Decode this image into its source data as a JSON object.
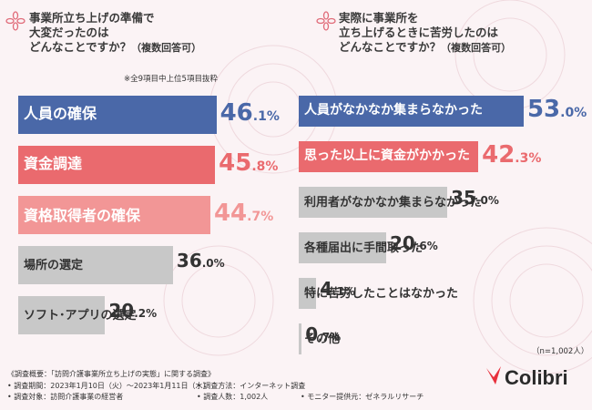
{
  "left": {
    "title_lines": [
      "事業所立ち上げの準備で",
      "大変だったのは"
    ],
    "title_last": "どんなことですか？",
    "title_sub": "（複数回答可）",
    "note": "※全9項目中上位5項目抜粋",
    "accent_color": "#c2404a"
  },
  "right": {
    "title_lines": [
      "実際に事業所を",
      "立ち上げるときに苦労したのは"
    ],
    "title_last": "どんなことですか？",
    "title_sub": "（複数回答可）",
    "sample": "（n=1,002人）"
  },
  "chart_data": [
    {
      "type": "bar",
      "orientation": "horizontal",
      "title": "事業所立ち上げの準備で大変だったのはどんなことですか？（複数回答可）",
      "categories": [
        "人員の確保",
        "資金調達",
        "資格取得者の確保",
        "場所の選定",
        "ソフト･アプリの選定"
      ],
      "values": [
        46.1,
        45.8,
        44.7,
        36.0,
        20.2
      ],
      "labels_int": [
        "46",
        "45",
        "44",
        "36",
        "20"
      ],
      "labels_dec": [
        ".1%",
        ".8%",
        ".7%",
        ".0%",
        ".2%"
      ],
      "colors": [
        "#4a68a8",
        "#ea6a6e",
        "#f29696",
        "#c8c8c8",
        "#c8c8c8"
      ],
      "label_colors": [
        "#ffffff",
        "#ffffff",
        "#ffffff",
        "#333333",
        "#333333"
      ],
      "pct_colors": [
        "#4a68a8",
        "#ea6a6e",
        "#f29696",
        "#333333",
        "#333333"
      ],
      "unit": "%"
    },
    {
      "type": "bar",
      "orientation": "horizontal",
      "title": "実際に事業所を立ち上げるときに苦労したのはどんなことですか？（複数回答可）",
      "categories": [
        "人員がなかなか集まらなかった",
        "思った以上に資金がかかった",
        "利用者がなかなか集まらなかった",
        "各種届出に手間取った",
        "特に苦労したことはなかった",
        "その他"
      ],
      "values": [
        53.0,
        42.3,
        35.0,
        20.6,
        4.1,
        0.7
      ],
      "labels_int": [
        "53",
        "42",
        "35",
        "20",
        "4",
        "0"
      ],
      "labels_dec": [
        ".0%",
        ".3%",
        ".0%",
        ".6%",
        ".1%",
        ".7%"
      ],
      "colors": [
        "#4a68a8",
        "#ea6a6e",
        "#c8c8c8",
        "#c8c8c8",
        "#c8c8c8",
        "#c8c8c8"
      ],
      "label_colors": [
        "#ffffff",
        "#ffffff",
        "#333333",
        "#333333",
        "#333333",
        "#333333"
      ],
      "pct_colors": [
        "#4a68a8",
        "#ea6a6e",
        "#333333",
        "#333333",
        "#333333",
        "#333333"
      ],
      "unit": "%",
      "n": "1,002"
    }
  ],
  "footer": {
    "survey_title": "《調査概要：「訪問介護事業所立ち上げの実態」に関する調査》",
    "period": "• 調査期間：2023年1月10日（火）〜2023年1月11日（水）",
    "target": "• 調査対象：訪問介護事業の経営者",
    "method": "• 調査方法：インターネット調査",
    "count": "• 調査人数：1,002人",
    "monitor": "• モニター提供元：ゼネラルリサーチ"
  },
  "brand": {
    "name": "Colibri",
    "color": "#2b2b2b",
    "accent": "#e8303c"
  }
}
